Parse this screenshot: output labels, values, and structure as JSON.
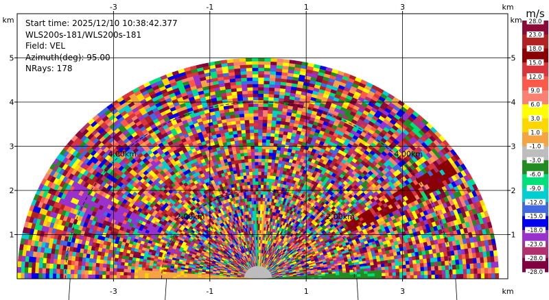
{
  "header": {
    "start_time": "Start time: 2025/12/10 10:38:42.377",
    "instrument": "WLS200s-181/WLS200s-181",
    "field": "Field: VEL",
    "azimuth": "Azimuth(deg): 95.00",
    "nrays": "NRays: 178"
  },
  "chart_data": {
    "type": "heatmap",
    "projection": "RHI half-disk (range x height)",
    "xlabel": "km",
    "ylabel": "km",
    "xlim": [
      -4.4,
      4.3
    ],
    "ylim": [
      0,
      6.0
    ],
    "x_ticks": [
      -3,
      -1,
      1,
      3
    ],
    "y_ticks": [
      1,
      2,
      3,
      4,
      5
    ],
    "max_range_km": 5.0,
    "range_rings_km": [
      2.0,
      4.0
    ],
    "ring_labels": [
      "2.00km",
      "4.00km"
    ],
    "colorbar": {
      "unit": "m/s",
      "bins": [
        {
          "label": "28.0",
          "color": "#8b0a36"
        },
        {
          "label": "23.0",
          "color": "#b22222"
        },
        {
          "label": "18.0",
          "color": "#8b0000"
        },
        {
          "label": "15.0",
          "color": "#d8363a"
        },
        {
          "label": "12.0",
          "color": "#fb5a4b"
        },
        {
          "label": "9.0",
          "color": "#fa8072"
        },
        {
          "label": "6.0",
          "color": "#ffff00"
        },
        {
          "label": "3.0",
          "color": "#ffd700"
        },
        {
          "label": "1.0",
          "color": "#f4a442"
        },
        {
          "label": "-1.0",
          "color": "#bdbdbd"
        },
        {
          "label": "-3.0",
          "color": "#228b22"
        },
        {
          "label": "-6.0",
          "color": "#00e07a"
        },
        {
          "label": "-9.0",
          "color": "#00ced1"
        },
        {
          "label": "-12.0",
          "color": "#4169e1"
        },
        {
          "label": "-15.0",
          "color": "#0000ee"
        },
        {
          "label": "-18.0",
          "color": "#9932cc"
        },
        {
          "label": "-23.0",
          "color": "#b03070"
        },
        {
          "label": "-28.0",
          "color": "#800040"
        }
      ]
    }
  }
}
